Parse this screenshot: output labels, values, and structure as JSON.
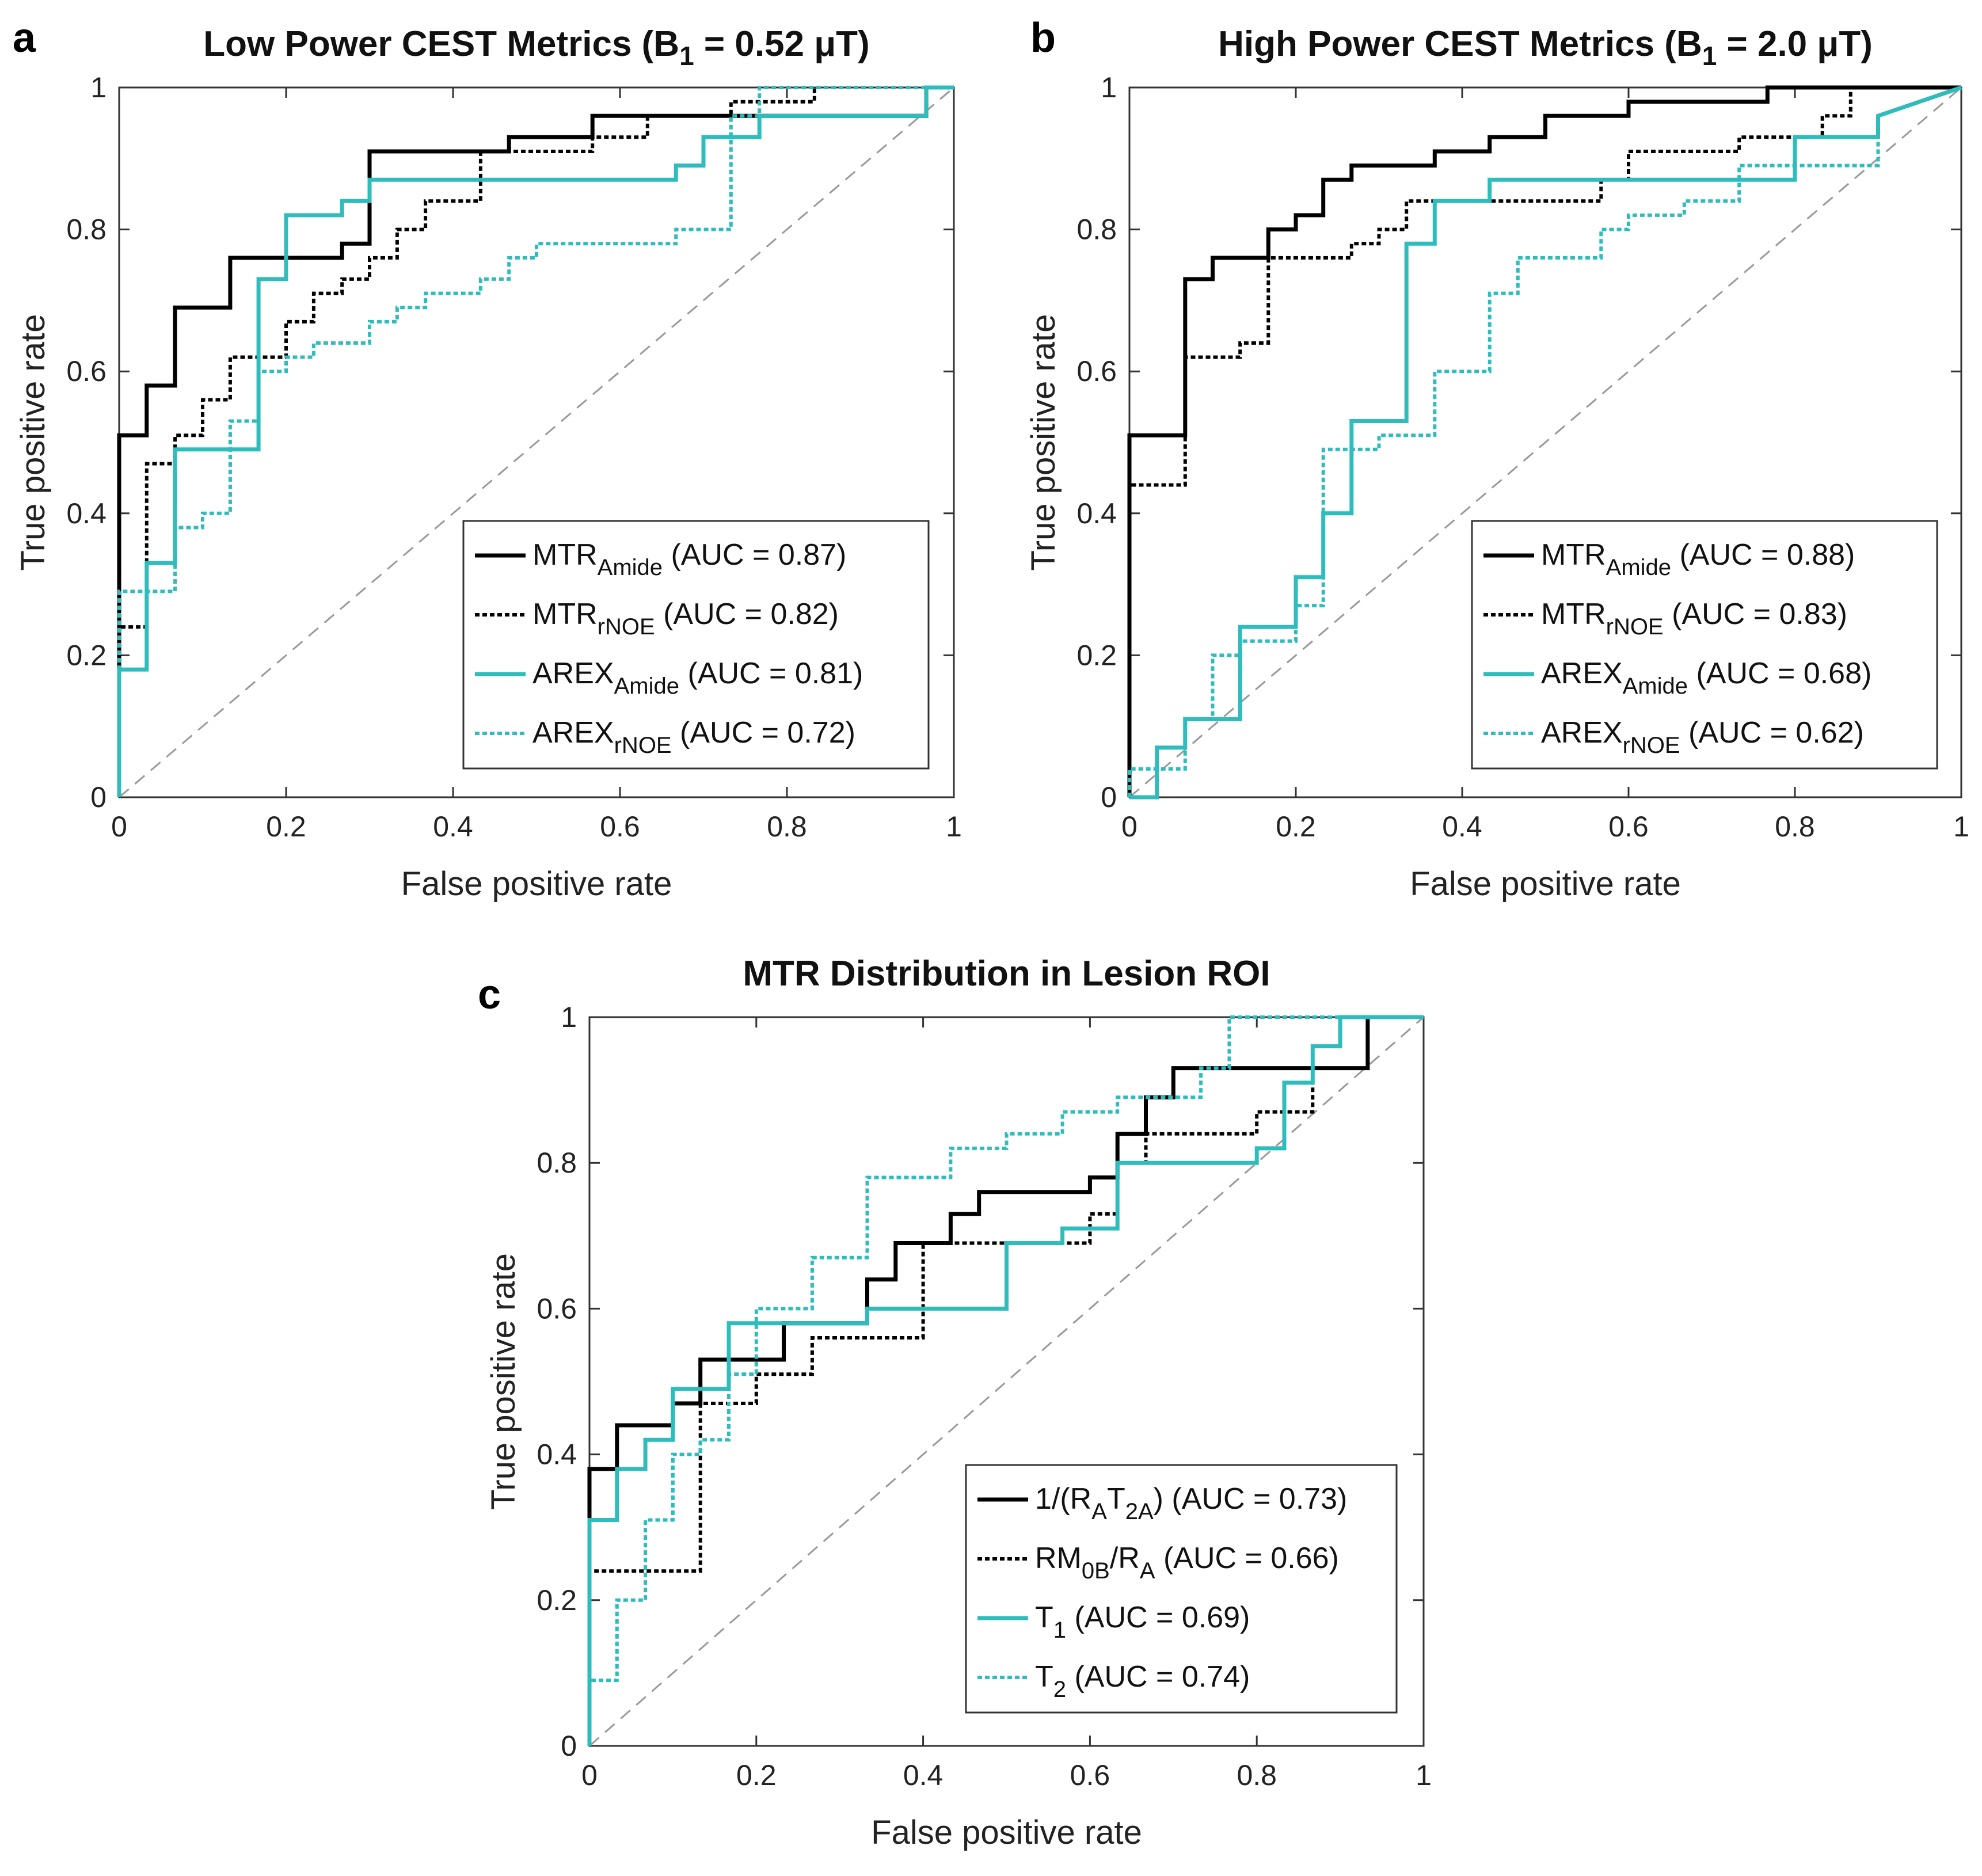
{
  "chart_data": [
    {
      "panel": "a",
      "type": "line",
      "title": "Low Power CEST Metrics (B",
      "title_sub": "1",
      "title_rest": " = 0.52 μT)",
      "xlabel": "False positive rate",
      "ylabel": "True positive rate",
      "xlim": [
        0,
        1
      ],
      "ylim": [
        0,
        1
      ],
      "xticks": [
        "0",
        "0.2",
        "0.4",
        "0.6",
        "0.8",
        "1"
      ],
      "yticks": [
        "0",
        "0.2",
        "0.4",
        "0.6",
        "0.8",
        "1"
      ],
      "legend_position": "bottom-right",
      "series": [
        {
          "name": "MTR",
          "sub": "Amide",
          "auc": "(AUC = 0.87)",
          "color": "#000000",
          "style": "solid",
          "x": [
            0,
            0,
            0.033,
            0.033,
            0.067,
            0.067,
            0.133,
            0.133,
            0.267,
            0.267,
            0.3,
            0.3,
            0.467,
            0.467,
            0.567,
            0.567,
            0.967,
            0.967,
            1
          ],
          "y": [
            0,
            0.51,
            0.51,
            0.58,
            0.58,
            0.69,
            0.69,
            0.76,
            0.76,
            0.78,
            0.78,
            0.91,
            0.91,
            0.93,
            0.93,
            0.96,
            0.96,
            1,
            1
          ]
        },
        {
          "name": "MTR",
          "sub": "rNOE",
          "auc": "(AUC = 0.82)",
          "color": "#000000",
          "style": "dotted",
          "x": [
            0,
            0,
            0.033,
            0.033,
            0.067,
            0.067,
            0.1,
            0.1,
            0.133,
            0.133,
            0.2,
            0.2,
            0.233,
            0.233,
            0.267,
            0.267,
            0.3,
            0.3,
            0.333,
            0.333,
            0.367,
            0.367,
            0.433,
            0.433,
            0.567,
            0.567,
            0.633,
            0.633,
            0.733,
            0.733,
            0.833,
            0.833,
            1
          ],
          "y": [
            0,
            0.24,
            0.24,
            0.47,
            0.47,
            0.51,
            0.51,
            0.56,
            0.56,
            0.62,
            0.62,
            0.67,
            0.67,
            0.71,
            0.71,
            0.73,
            0.73,
            0.76,
            0.76,
            0.8,
            0.8,
            0.84,
            0.84,
            0.91,
            0.91,
            0.93,
            0.93,
            0.96,
            0.96,
            0.98,
            0.98,
            1,
            1
          ]
        },
        {
          "name": "AREX",
          "sub": "Amide",
          "auc": "(AUC = 0.81)",
          "color": "#2ebcbc",
          "style": "solid",
          "x": [
            0,
            0,
            0.033,
            0.033,
            0.067,
            0.067,
            0.167,
            0.167,
            0.2,
            0.2,
            0.267,
            0.267,
            0.3,
            0.3,
            0.667,
            0.667,
            0.7,
            0.7,
            0.767,
            0.767,
            0.967,
            0.967,
            1
          ],
          "y": [
            0,
            0.18,
            0.18,
            0.33,
            0.33,
            0.49,
            0.49,
            0.73,
            0.73,
            0.82,
            0.82,
            0.84,
            0.84,
            0.87,
            0.87,
            0.89,
            0.89,
            0.93,
            0.93,
            0.96,
            0.96,
            1,
            1
          ]
        },
        {
          "name": "AREX",
          "sub": "rNOE",
          "auc": "(AUC = 0.72)",
          "color": "#2ebcbc",
          "style": "dotted",
          "x": [
            0,
            0,
            0.067,
            0.067,
            0.1,
            0.1,
            0.133,
            0.133,
            0.167,
            0.167,
            0.2,
            0.2,
            0.233,
            0.233,
            0.3,
            0.3,
            0.333,
            0.333,
            0.367,
            0.367,
            0.433,
            0.433,
            0.467,
            0.467,
            0.5,
            0.5,
            0.667,
            0.667,
            0.733,
            0.733,
            0.767,
            0.767,
            0.8,
            0.8,
            1
          ],
          "y": [
            0,
            0.29,
            0.29,
            0.38,
            0.38,
            0.4,
            0.4,
            0.53,
            0.53,
            0.6,
            0.6,
            0.62,
            0.62,
            0.64,
            0.64,
            0.67,
            0.67,
            0.69,
            0.69,
            0.71,
            0.71,
            0.73,
            0.73,
            0.76,
            0.76,
            0.78,
            0.78,
            0.8,
            0.8,
            0.96,
            0.96,
            1,
            1,
            1,
            1
          ]
        }
      ]
    },
    {
      "panel": "b",
      "type": "line",
      "title": "High Power CEST Metrics (B",
      "title_sub": "1",
      "title_rest": " = 2.0 μT)",
      "xlabel": "False positive rate",
      "ylabel": "True positive rate",
      "xlim": [
        0,
        1
      ],
      "ylim": [
        0,
        1
      ],
      "xticks": [
        "0",
        "0.2",
        "0.4",
        "0.6",
        "0.8",
        "1"
      ],
      "yticks": [
        "0",
        "0.2",
        "0.4",
        "0.6",
        "0.8",
        "1"
      ],
      "legend_position": "bottom-right",
      "series": [
        {
          "name": "MTR",
          "sub": "Amide",
          "auc": "(AUC = 0.88)",
          "color": "#000000",
          "style": "solid",
          "x": [
            0,
            0,
            0.067,
            0.067,
            0.1,
            0.1,
            0.167,
            0.167,
            0.2,
            0.2,
            0.233,
            0.233,
            0.267,
            0.267,
            0.367,
            0.367,
            0.433,
            0.433,
            0.5,
            0.5,
            0.6,
            0.6,
            0.767,
            0.767,
            0.933,
            0.933,
            1
          ],
          "y": [
            0,
            0.51,
            0.51,
            0.73,
            0.73,
            0.76,
            0.76,
            0.8,
            0.8,
            0.82,
            0.82,
            0.87,
            0.87,
            0.89,
            0.89,
            0.91,
            0.91,
            0.93,
            0.93,
            0.96,
            0.96,
            0.98,
            0.98,
            1,
            1,
            1,
            1
          ]
        },
        {
          "name": "MTR",
          "sub": "rNOE",
          "auc": "(AUC = 0.83)",
          "color": "#000000",
          "style": "dotted",
          "x": [
            0,
            0,
            0.067,
            0.067,
            0.133,
            0.133,
            0.167,
            0.167,
            0.267,
            0.267,
            0.3,
            0.3,
            0.333,
            0.333,
            0.367,
            0.367,
            0.567,
            0.567,
            0.6,
            0.6,
            0.733,
            0.733,
            0.833,
            0.833,
            0.867,
            0.867,
            1
          ],
          "y": [
            0,
            0.44,
            0.44,
            0.62,
            0.62,
            0.64,
            0.64,
            0.76,
            0.76,
            0.78,
            0.78,
            0.8,
            0.8,
            0.84,
            0.84,
            0.84,
            0.84,
            0.87,
            0.87,
            0.91,
            0.91,
            0.93,
            0.93,
            0.96,
            0.96,
            1,
            1
          ]
        },
        {
          "name": "AREX",
          "sub": "Amide",
          "auc": "(AUC = 0.68)",
          "color": "#2ebcbc",
          "style": "solid",
          "x": [
            0,
            0.033,
            0.033,
            0.067,
            0.067,
            0.133,
            0.133,
            0.2,
            0.2,
            0.233,
            0.233,
            0.267,
            0.267,
            0.333,
            0.333,
            0.367,
            0.367,
            0.433,
            0.433,
            0.8,
            0.8,
            0.9,
            0.9,
            1
          ],
          "y": [
            0,
            0,
            0.07,
            0.07,
            0.11,
            0.11,
            0.24,
            0.24,
            0.31,
            0.31,
            0.4,
            0.4,
            0.53,
            0.53,
            0.78,
            0.78,
            0.84,
            0.84,
            0.87,
            0.87,
            0.93,
            0.93,
            0.96,
            1
          ]
        },
        {
          "name": "AREX",
          "sub": "rNOE",
          "auc": "(AUC = 0.62)",
          "color": "#2ebcbc",
          "style": "dotted",
          "x": [
            0,
            0,
            0.067,
            0.067,
            0.1,
            0.1,
            0.133,
            0.133,
            0.2,
            0.2,
            0.233,
            0.233,
            0.3,
            0.3,
            0.367,
            0.367,
            0.433,
            0.433,
            0.467,
            0.467,
            0.5,
            0.5,
            0.567,
            0.567,
            0.6,
            0.6,
            0.667,
            0.667,
            0.733,
            0.733,
            0.9,
            0.9,
            1
          ],
          "y": [
            0,
            0.04,
            0.04,
            0.11,
            0.11,
            0.2,
            0.2,
            0.22,
            0.22,
            0.27,
            0.27,
            0.49,
            0.49,
            0.51,
            0.51,
            0.6,
            0.6,
            0.71,
            0.71,
            0.76,
            0.76,
            0.76,
            0.76,
            0.8,
            0.8,
            0.82,
            0.82,
            0.84,
            0.84,
            0.89,
            0.89,
            0.96,
            1
          ]
        }
      ]
    },
    {
      "panel": "c",
      "type": "line",
      "title": "MTR Distribution in Lesion ROI",
      "title_sub": "",
      "title_rest": "",
      "xlabel": "False positive rate",
      "ylabel": "True positive rate",
      "xlim": [
        0,
        1
      ],
      "ylim": [
        0,
        1
      ],
      "xticks": [
        "0",
        "0.2",
        "0.4",
        "0.6",
        "0.8",
        "1"
      ],
      "yticks": [
        "0",
        "0.2",
        "0.4",
        "0.6",
        "0.8",
        "1"
      ],
      "legend_position": "bottom-right",
      "series": [
        {
          "name": "1/(R",
          "sub": "A",
          "mid": "T",
          "sub2": "2A",
          "end": ")",
          "auc": "(AUC = 0.73)",
          "color": "#000000",
          "style": "solid",
          "x": [
            0,
            0,
            0.033,
            0.033,
            0.1,
            0.1,
            0.133,
            0.133,
            0.233,
            0.233,
            0.333,
            0.333,
            0.367,
            0.367,
            0.433,
            0.433,
            0.467,
            0.467,
            0.6,
            0.6,
            0.633,
            0.633,
            0.667,
            0.667,
            0.7,
            0.7,
            0.933,
            0.933,
            1
          ],
          "y": [
            0,
            0.38,
            0.38,
            0.44,
            0.44,
            0.47,
            0.47,
            0.53,
            0.53,
            0.58,
            0.58,
            0.64,
            0.64,
            0.69,
            0.69,
            0.73,
            0.73,
            0.76,
            0.76,
            0.78,
            0.78,
            0.84,
            0.84,
            0.89,
            0.89,
            0.93,
            0.93,
            1,
            1
          ]
        },
        {
          "name": "RM",
          "sub": "0B",
          "mid": "/R",
          "sub2": "A",
          "end": "",
          "auc": "(AUC = 0.66)",
          "color": "#000000",
          "style": "dotted",
          "x": [
            0,
            0,
            0.133,
            0.133,
            0.2,
            0.2,
            0.267,
            0.267,
            0.4,
            0.4,
            0.433,
            0.433,
            0.6,
            0.6,
            0.633,
            0.633,
            0.667,
            0.667,
            0.8,
            0.8,
            0.867,
            0.867,
            0.933,
            0.933,
            1
          ],
          "y": [
            0,
            0.24,
            0.24,
            0.47,
            0.47,
            0.51,
            0.51,
            0.56,
            0.56,
            0.69,
            0.69,
            0.69,
            0.69,
            0.73,
            0.73,
            0.8,
            0.8,
            0.84,
            0.84,
            0.87,
            0.87,
            0.93,
            0.93,
            1,
            1
          ]
        },
        {
          "name": "T",
          "sub": "1",
          "mid": "",
          "sub2": "",
          "end": "",
          "auc": "(AUC = 0.69)",
          "color": "#2ebcbc",
          "style": "solid",
          "x": [
            0,
            0,
            0.033,
            0.033,
            0.067,
            0.067,
            0.1,
            0.1,
            0.167,
            0.167,
            0.333,
            0.333,
            0.5,
            0.5,
            0.567,
            0.567,
            0.633,
            0.633,
            0.8,
            0.8,
            0.833,
            0.833,
            0.867,
            0.867,
            0.9,
            0.9,
            1
          ],
          "y": [
            0,
            0.31,
            0.31,
            0.38,
            0.38,
            0.42,
            0.42,
            0.49,
            0.49,
            0.58,
            0.58,
            0.6,
            0.6,
            0.69,
            0.69,
            0.71,
            0.71,
            0.8,
            0.8,
            0.82,
            0.82,
            0.91,
            0.91,
            0.96,
            0.96,
            1,
            1
          ]
        },
        {
          "name": "T",
          "sub": "2",
          "mid": "",
          "sub2": "",
          "end": "",
          "auc": "(AUC = 0.74)",
          "color": "#2ebcbc",
          "style": "dotted",
          "x": [
            0,
            0,
            0.033,
            0.033,
            0.067,
            0.067,
            0.1,
            0.1,
            0.133,
            0.133,
            0.167,
            0.167,
            0.2,
            0.2,
            0.267,
            0.267,
            0.333,
            0.333,
            0.433,
            0.433,
            0.5,
            0.5,
            0.567,
            0.567,
            0.633,
            0.633,
            0.733,
            0.733,
            0.767,
            0.767,
            0.833,
            0.833,
            0.867,
            0.867,
            1
          ],
          "y": [
            0,
            0.09,
            0.09,
            0.2,
            0.2,
            0.31,
            0.31,
            0.4,
            0.4,
            0.42,
            0.42,
            0.51,
            0.51,
            0.6,
            0.6,
            0.67,
            0.67,
            0.78,
            0.78,
            0.82,
            0.82,
            0.84,
            0.84,
            0.87,
            0.87,
            0.89,
            0.89,
            0.93,
            0.93,
            1,
            1,
            1,
            1,
            1,
            1
          ]
        }
      ]
    }
  ]
}
